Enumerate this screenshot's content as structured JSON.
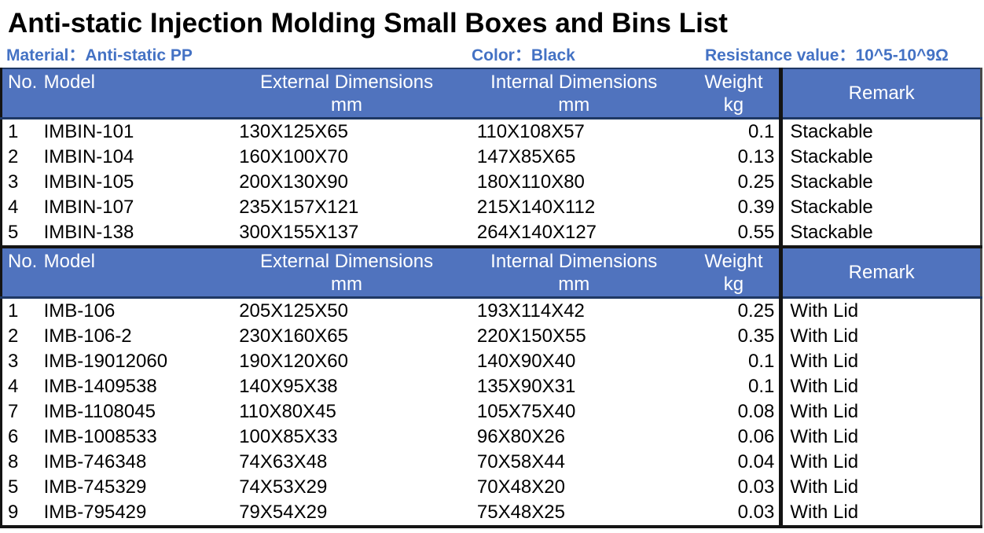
{
  "title": "Anti-static Injection Molding Small Boxes and Bins List",
  "meta": {
    "material_label": "Material：",
    "material_value": "Anti-static PP",
    "color_label": "Color：",
    "color_value": "Black",
    "resistance_label": "Resistance value：",
    "resistance_value": "10^5-10^9Ω"
  },
  "columns": {
    "no": "No.",
    "model": "Model",
    "external": "External Dimensions",
    "internal": "Internal Dimensions",
    "weight": "Weight",
    "unit_mm": "mm",
    "unit_kg": "kg",
    "remark": "Remark"
  },
  "colors": {
    "header_bg": "#5073BE",
    "header_text": "#FFFFFF",
    "subtitle_blue": "#4472C4",
    "header_underline_navy": "#1F3864",
    "table_border": "#141414"
  },
  "tables": [
    {
      "name": "bins",
      "rows": [
        {
          "no": "1",
          "model": "IMBIN-101",
          "external": "130X125X65",
          "internal": "110X108X57",
          "weight": "0.1",
          "remark": "Stackable"
        },
        {
          "no": "2",
          "model": "IMBIN-104",
          "external": "160X100X70",
          "internal": "147X85X65",
          "weight": "0.13",
          "remark": "Stackable"
        },
        {
          "no": "3",
          "model": "IMBIN-105",
          "external": "200X130X90",
          "internal": "180X110X80",
          "weight": "0.25",
          "remark": "Stackable"
        },
        {
          "no": "4",
          "model": "IMBIN-107",
          "external": "235X157X121",
          "internal": "215X140X112",
          "weight": "0.39",
          "remark": "Stackable"
        },
        {
          "no": "5",
          "model": "IMBIN-138",
          "external": "300X155X137",
          "internal": "264X140X127",
          "weight": "0.55",
          "remark": "Stackable"
        }
      ]
    },
    {
      "name": "boxes",
      "rows": [
        {
          "no": "1",
          "model": "IMB-106",
          "external": "205X125X50",
          "internal": "193X114X42",
          "weight": "0.25",
          "remark": "With Lid"
        },
        {
          "no": "2",
          "model": "IMB-106-2",
          "external": "230X160X65",
          "internal": "220X150X55",
          "weight": "0.35",
          "remark": "With Lid"
        },
        {
          "no": "3",
          "model": "IMB-19012060",
          "external": "190X120X60",
          "internal": "140X90X40",
          "weight": "0.1",
          "remark": "With Lid"
        },
        {
          "no": "4",
          "model": "IMB-1409538",
          "external": "140X95X38",
          "internal": "135X90X31",
          "weight": "0.1",
          "remark": "With Lid"
        },
        {
          "no": "7",
          "model": "IMB-1108045",
          "external": "110X80X45",
          "internal": "105X75X40",
          "weight": "0.08",
          "remark": "With Lid"
        },
        {
          "no": "6",
          "model": "IMB-1008533",
          "external": "100X85X33",
          "internal": "96X80X26",
          "weight": "0.06",
          "remark": "With Lid"
        },
        {
          "no": "8",
          "model": "IMB-746348",
          "external": "74X63X48",
          "internal": "70X58X44",
          "weight": "0.04",
          "remark": "With Lid"
        },
        {
          "no": "5",
          "model": "IMB-745329",
          "external": "74X53X29",
          "internal": "70X48X20",
          "weight": "0.03",
          "remark": "With Lid"
        },
        {
          "no": "9",
          "model": "IMB-795429",
          "external": "79X54X29",
          "internal": "75X48X25",
          "weight": "0.03",
          "remark": "With Lid"
        }
      ]
    }
  ]
}
